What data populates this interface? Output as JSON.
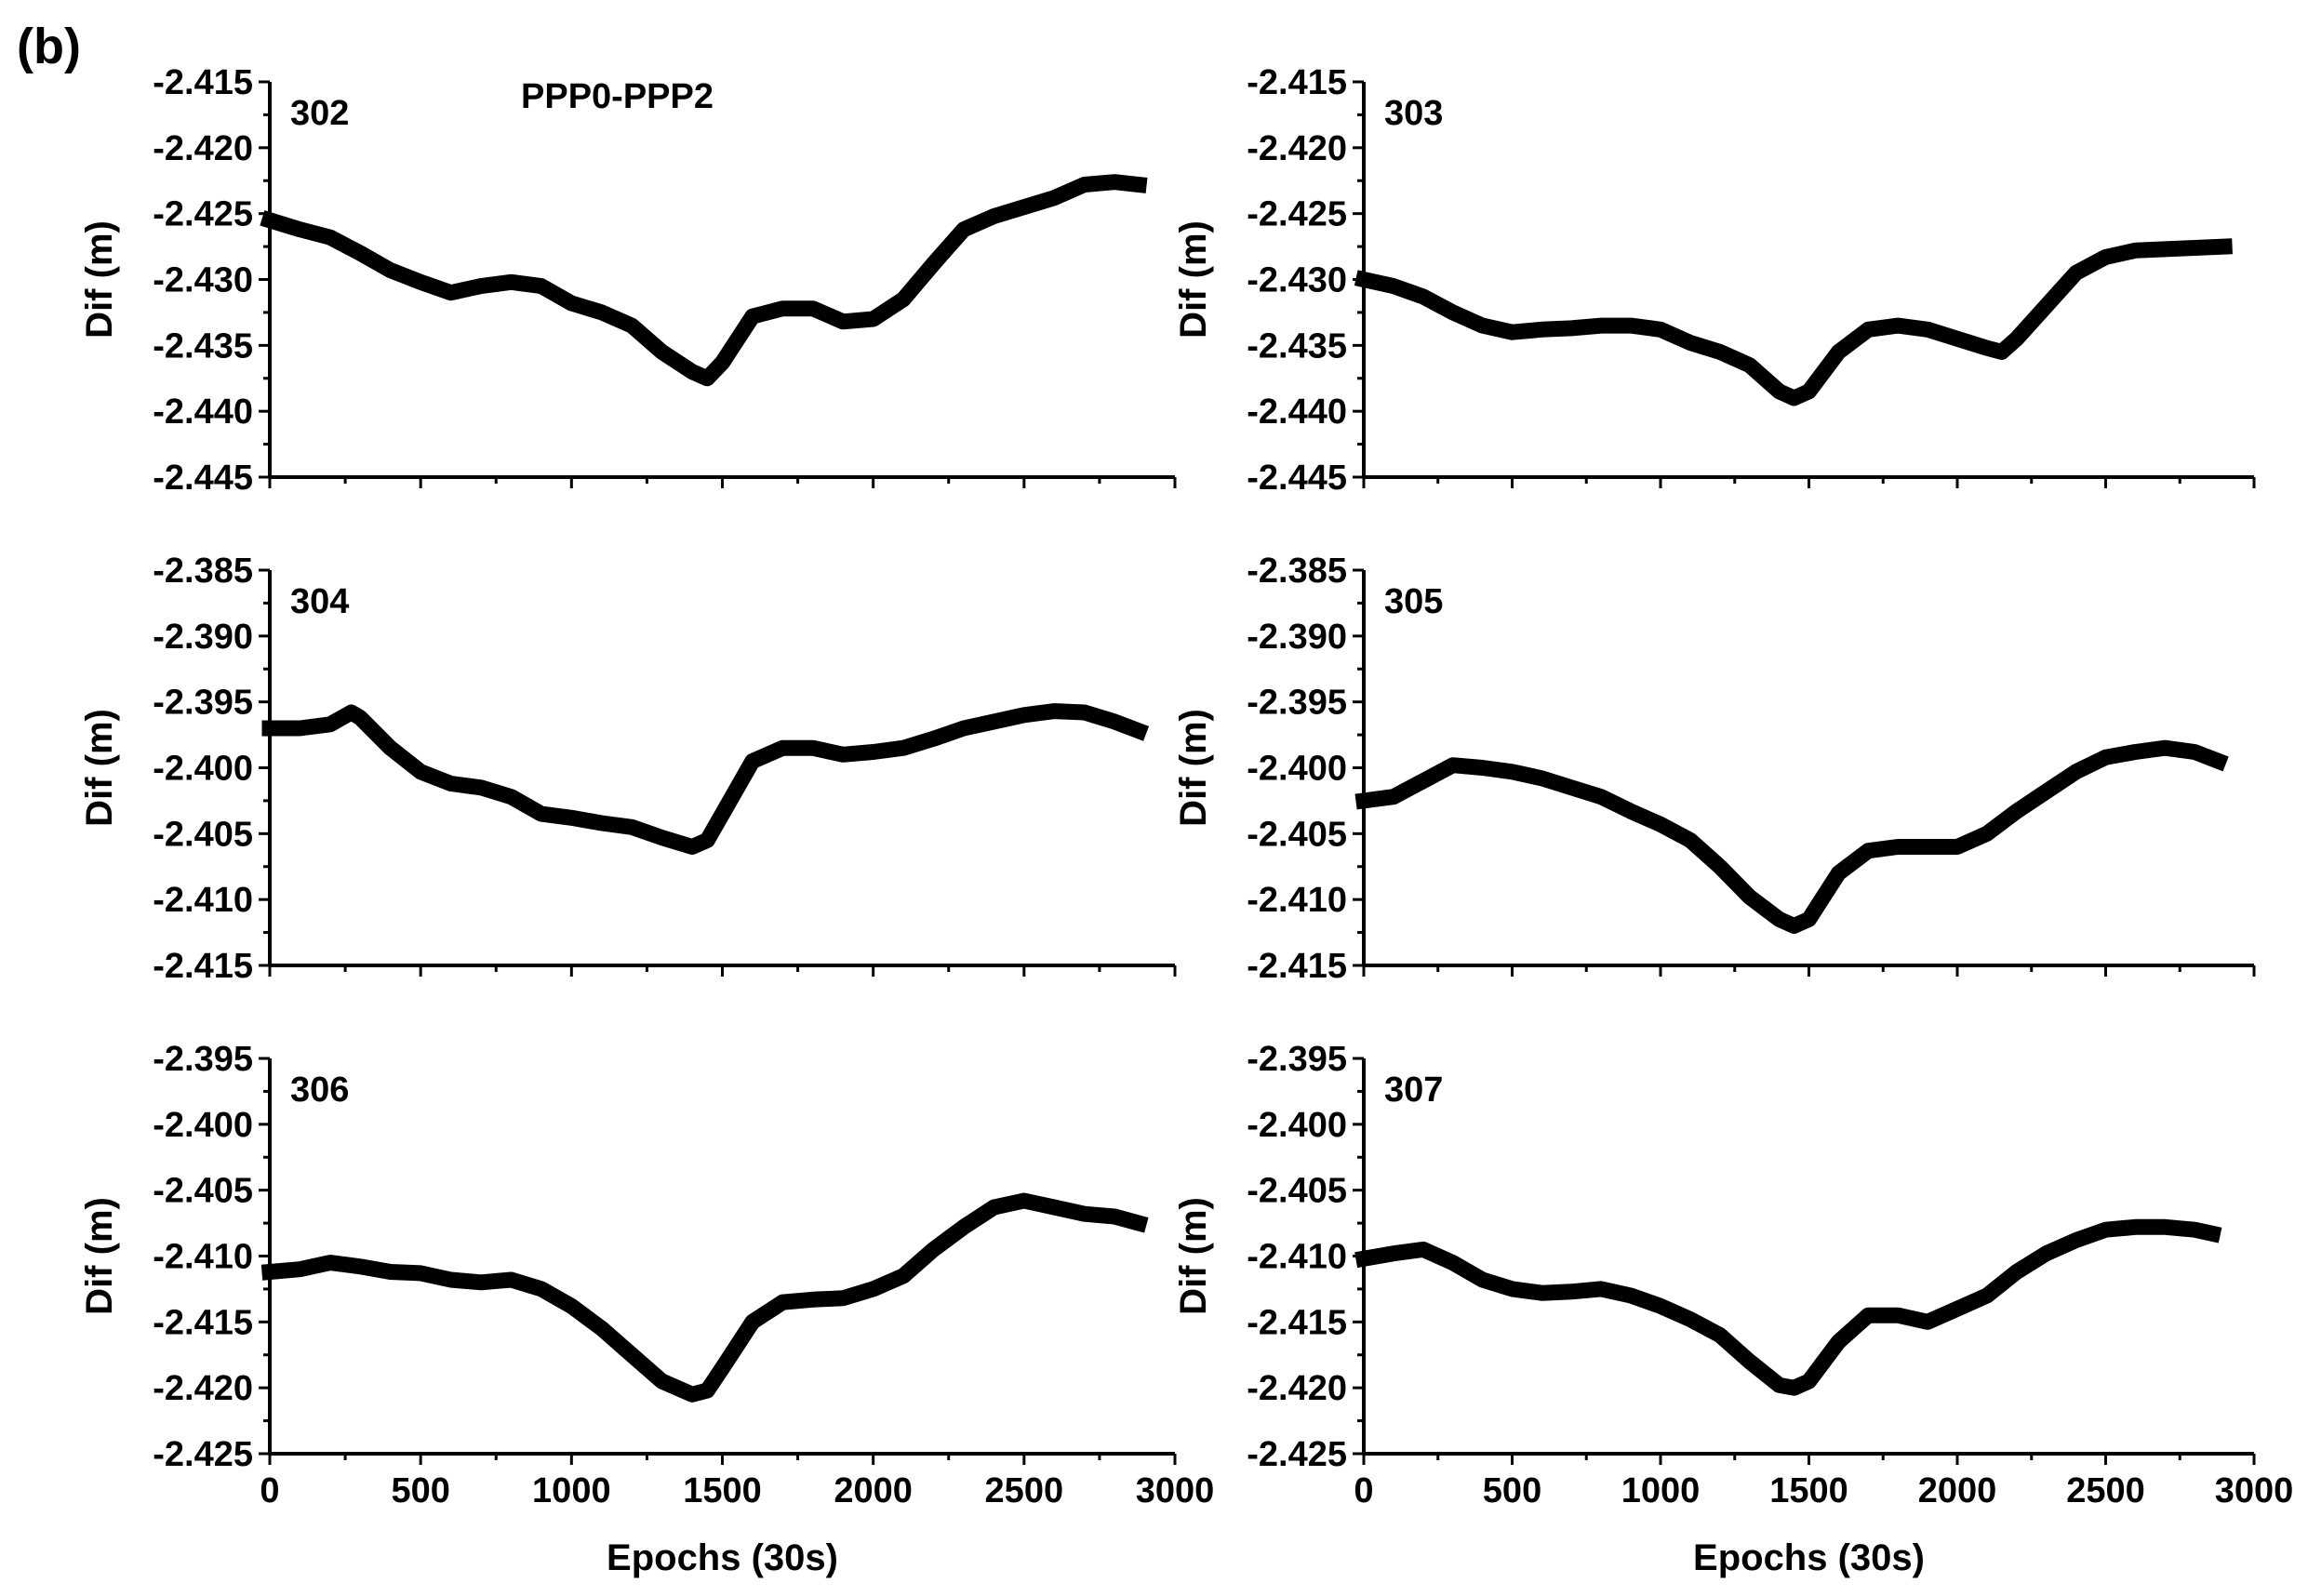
{
  "figure": {
    "label": "(b)"
  },
  "chart_data": [
    {
      "type": "line",
      "station": "302",
      "title": "PPP0-PPP2",
      "xlabel": "",
      "ylabel": "Dif (m)",
      "xlim": [
        0,
        3000
      ],
      "ylim": [
        -2.445,
        -2.415
      ],
      "xticks": [
        "0",
        "500",
        "1000",
        "1500",
        "2000",
        "2500",
        "3000"
      ],
      "xticks_visible": false,
      "yticks": [
        "-2.415",
        "-2.420",
        "-2.425",
        "-2.430",
        "-2.435",
        "-2.440",
        "-2.445"
      ],
      "x": [
        0,
        100,
        200,
        300,
        400,
        500,
        600,
        700,
        800,
        900,
        1000,
        1100,
        1200,
        1300,
        1400,
        1450,
        1500,
        1600,
        1700,
        1800,
        1900,
        2000,
        2100,
        2200,
        2300,
        2400,
        2500,
        2600,
        2700,
        2800,
        2880
      ],
      "y": [
        -2.4255,
        -2.4262,
        -2.4268,
        -2.428,
        -2.4293,
        -2.4302,
        -2.431,
        -2.4305,
        -2.4302,
        -2.4305,
        -2.4318,
        -2.4325,
        -2.4335,
        -2.4355,
        -2.437,
        -2.4375,
        -2.4363,
        -2.4328,
        -2.4322,
        -2.4322,
        -2.4332,
        -2.433,
        -2.4315,
        -2.4288,
        -2.4262,
        -2.4252,
        -2.4245,
        -2.4238,
        -2.4228,
        -2.4226,
        -2.4228
      ]
    },
    {
      "type": "line",
      "station": "303",
      "xlabel": "",
      "ylabel": "Dif (m)",
      "xlim": [
        0,
        3000
      ],
      "ylim": [
        -2.445,
        -2.415
      ],
      "xticks": [
        "0",
        "500",
        "1000",
        "1500",
        "2000",
        "2500",
        "3000"
      ],
      "xticks_visible": false,
      "yticks": [
        "-2.415",
        "-2.420",
        "-2.425",
        "-2.430",
        "-2.435",
        "-2.440",
        "-2.445"
      ],
      "x": [
        0,
        100,
        200,
        300,
        400,
        500,
        600,
        700,
        800,
        900,
        1000,
        1100,
        1200,
        1300,
        1400,
        1450,
        1500,
        1600,
        1700,
        1800,
        1900,
        2000,
        2100,
        2150,
        2200,
        2300,
        2400,
        2500,
        2600,
        2700,
        2800,
        2900
      ],
      "y": [
        -2.43,
        -2.4305,
        -2.4313,
        -2.4325,
        -2.4335,
        -2.434,
        -2.4338,
        -2.4337,
        -2.4335,
        -2.4335,
        -2.4338,
        -2.4348,
        -2.4355,
        -2.4365,
        -2.4385,
        -2.439,
        -2.4385,
        -2.4355,
        -2.4338,
        -2.4335,
        -2.4338,
        -2.4345,
        -2.4352,
        -2.4355,
        -2.4345,
        -2.432,
        -2.4295,
        -2.4283,
        -2.4278,
        -2.4277,
        -2.4276,
        -2.4275
      ]
    },
    {
      "type": "line",
      "station": "304",
      "xlabel": "",
      "ylabel": "Dif (m)",
      "xlim": [
        0,
        3000
      ],
      "ylim": [
        -2.415,
        -2.385
      ],
      "xticks": [
        "0",
        "500",
        "1000",
        "1500",
        "2000",
        "2500",
        "3000"
      ],
      "xticks_visible": false,
      "yticks": [
        "-2.385",
        "-2.390",
        "-2.395",
        "-2.400",
        "-2.405",
        "-2.410",
        "-2.415"
      ],
      "x": [
        0,
        100,
        200,
        270,
        300,
        400,
        500,
        600,
        700,
        800,
        900,
        1000,
        1100,
        1200,
        1300,
        1400,
        1450,
        1500,
        1600,
        1700,
        1800,
        1900,
        2000,
        2100,
        2200,
        2300,
        2400,
        2500,
        2600,
        2700,
        2800,
        2880
      ],
      "y": [
        -2.397,
        -2.397,
        -2.3967,
        -2.3958,
        -2.3962,
        -2.3985,
        -2.4003,
        -2.4012,
        -2.4015,
        -2.4022,
        -2.4035,
        -2.4038,
        -2.4042,
        -2.4045,
        -2.4053,
        -2.406,
        -2.4055,
        -2.4035,
        -2.3995,
        -2.3985,
        -2.3985,
        -2.399,
        -2.3988,
        -2.3985,
        -2.3978,
        -2.397,
        -2.3965,
        -2.396,
        -2.3957,
        -2.3958,
        -2.3965,
        -2.3972
      ]
    },
    {
      "type": "line",
      "station": "305",
      "xlabel": "",
      "ylabel": "Dif (m)",
      "xlim": [
        0,
        3000
      ],
      "ylim": [
        -2.415,
        -2.385
      ],
      "xticks": [
        "0",
        "500",
        "1000",
        "1500",
        "2000",
        "2500",
        "3000"
      ],
      "xticks_visible": false,
      "yticks": [
        "-2.385",
        "-2.390",
        "-2.395",
        "-2.400",
        "-2.405",
        "-2.410",
        "-2.415"
      ],
      "x": [
        0,
        100,
        200,
        300,
        400,
        500,
        600,
        700,
        800,
        900,
        1000,
        1100,
        1200,
        1300,
        1400,
        1450,
        1500,
        1600,
        1700,
        1800,
        1900,
        2000,
        2100,
        2200,
        2300,
        2400,
        2500,
        2600,
        2700,
        2800,
        2880
      ],
      "y": [
        -2.4025,
        -2.4022,
        -2.401,
        -2.3998,
        -2.4,
        -2.4003,
        -2.4008,
        -2.4015,
        -2.4022,
        -2.4033,
        -2.4043,
        -2.4055,
        -2.4075,
        -2.4098,
        -2.4115,
        -2.412,
        -2.4115,
        -2.408,
        -2.4063,
        -2.406,
        -2.406,
        -2.406,
        -2.405,
        -2.4033,
        -2.4018,
        -2.4003,
        -2.3992,
        -2.3988,
        -2.3985,
        -2.3988,
        -2.3995
      ]
    },
    {
      "type": "line",
      "station": "306",
      "xlabel": "Epochs (30s)",
      "ylabel": "Dif (m)",
      "xlim": [
        0,
        3000
      ],
      "ylim": [
        -2.425,
        -2.395
      ],
      "xticks": [
        "0",
        "500",
        "1000",
        "1500",
        "2000",
        "2500",
        "3000"
      ],
      "xticks_visible": true,
      "yticks": [
        "-2.395",
        "-2.400",
        "-2.405",
        "-2.410",
        "-2.415",
        "-2.420",
        "-2.425"
      ],
      "x": [
        0,
        100,
        200,
        300,
        400,
        500,
        600,
        700,
        800,
        900,
        1000,
        1100,
        1200,
        1300,
        1400,
        1450,
        1500,
        1600,
        1700,
        1800,
        1900,
        2000,
        2100,
        2200,
        2300,
        2400,
        2500,
        2600,
        2700,
        2800,
        2880
      ],
      "y": [
        -2.4112,
        -2.411,
        -2.4105,
        -2.4108,
        -2.4112,
        -2.4113,
        -2.4118,
        -2.412,
        -2.4118,
        -2.4125,
        -2.4138,
        -2.4155,
        -2.4175,
        -2.4195,
        -2.4205,
        -2.4202,
        -2.4185,
        -2.415,
        -2.4135,
        -2.4133,
        -2.4132,
        -2.4125,
        -2.4115,
        -2.4095,
        -2.4078,
        -2.4063,
        -2.4058,
        -2.4063,
        -2.4068,
        -2.407,
        -2.4075
      ]
    },
    {
      "type": "line",
      "station": "307",
      "xlabel": "Epochs (30s)",
      "ylabel": "Dif (m)",
      "xlim": [
        0,
        3000
      ],
      "ylim": [
        -2.425,
        -2.395
      ],
      "xticks": [
        "0",
        "500",
        "1000",
        "1500",
        "2000",
        "2500",
        "3000"
      ],
      "xticks_visible": true,
      "yticks": [
        "-2.395",
        "-2.400",
        "-2.405",
        "-2.410",
        "-2.415",
        "-2.420",
        "-2.425"
      ],
      "x": [
        0,
        100,
        200,
        300,
        400,
        500,
        600,
        700,
        800,
        900,
        1000,
        1100,
        1200,
        1300,
        1400,
        1450,
        1500,
        1600,
        1700,
        1800,
        1900,
        2000,
        2100,
        2200,
        2300,
        2400,
        2500,
        2600,
        2700,
        2800,
        2860
      ],
      "y": [
        -2.4102,
        -2.4098,
        -2.4095,
        -2.4105,
        -2.4118,
        -2.4125,
        -2.4128,
        -2.4127,
        -2.4125,
        -2.413,
        -2.4138,
        -2.4148,
        -2.416,
        -2.418,
        -2.4198,
        -2.42,
        -2.4195,
        -2.4165,
        -2.4145,
        -2.4145,
        -2.415,
        -2.414,
        -2.413,
        -2.4112,
        -2.4098,
        -2.4088,
        -2.408,
        -2.4078,
        -2.4078,
        -2.408,
        -2.4083
      ]
    }
  ]
}
